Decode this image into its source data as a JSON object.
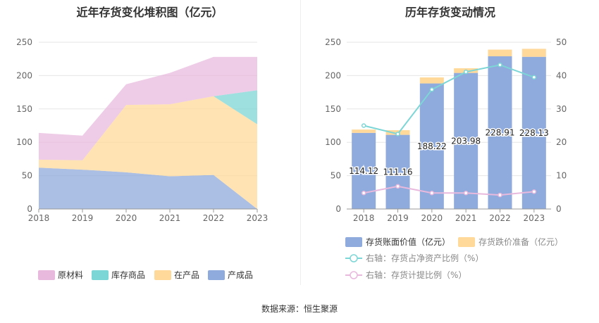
{
  "source_label": "数据来源：恒生聚源",
  "chart_data": [
    {
      "type": "area",
      "stacked": true,
      "title": "近年存货变化堆积图（亿元）",
      "categories": [
        "2018",
        "2019",
        "2020",
        "2021",
        "2022",
        "2023"
      ],
      "ylim": [
        0,
        250
      ],
      "yticks": [
        0,
        50,
        100,
        150,
        200,
        250
      ],
      "grid": true,
      "legend_position": "bottom",
      "series": [
        {
          "name": "产成品",
          "color": "#8faadc",
          "values": [
            62,
            59,
            55,
            49,
            51,
            0
          ]
        },
        {
          "name": "在产品",
          "color": "#ffd99a",
          "values": [
            12,
            14,
            101,
            108,
            118,
            127
          ]
        },
        {
          "name": "库存商品",
          "color": "#7dd6d6",
          "values": [
            0,
            0,
            0,
            0,
            0,
            51
          ]
        },
        {
          "name": "原材料",
          "color": "#e8b9dd",
          "values": [
            40,
            37,
            31,
            47,
            59,
            50
          ]
        }
      ],
      "legend_order": [
        "原材料",
        "库存商品",
        "在产品",
        "产成品"
      ]
    },
    {
      "type": "bar",
      "stacked": true,
      "title": "历年存货变动情况",
      "categories": [
        "2018",
        "2019",
        "2020",
        "2021",
        "2022",
        "2023"
      ],
      "ylim": [
        0,
        250
      ],
      "yticks": [
        0,
        50,
        100,
        150,
        200,
        250
      ],
      "y2lim": [
        0,
        50
      ],
      "y2ticks": [
        0,
        10,
        20,
        30,
        40,
        50
      ],
      "grid": true,
      "legend_position": "bottom",
      "series": [
        {
          "name": "存货账面价值（亿元）",
          "color": "#8faadc",
          "kind": "bar",
          "values": [
            114.12,
            111.16,
            188.22,
            203.98,
            228.91,
            228.13
          ],
          "labels": [
            "114.12",
            "111.16",
            "188.22",
            "203.98",
            "228.91",
            "228.13"
          ]
        },
        {
          "name": "存货跌价准备（亿元）",
          "color": "#ffd99a",
          "kind": "bar",
          "values": [
            5,
            7,
            9,
            7,
            10,
            12
          ]
        },
        {
          "name": "右轴：存货占净资产比例（%）",
          "color": "#7dd6d6",
          "kind": "line",
          "axis": "right",
          "values": [
            25,
            22.5,
            35.8,
            41.1,
            43.2,
            39.5
          ]
        },
        {
          "name": "右轴：存货计提比例（%）",
          "color": "#e8b9dd",
          "kind": "line",
          "axis": "right",
          "values": [
            4.8,
            6.8,
            4.8,
            4.8,
            4.2,
            5.2
          ]
        }
      ]
    }
  ]
}
